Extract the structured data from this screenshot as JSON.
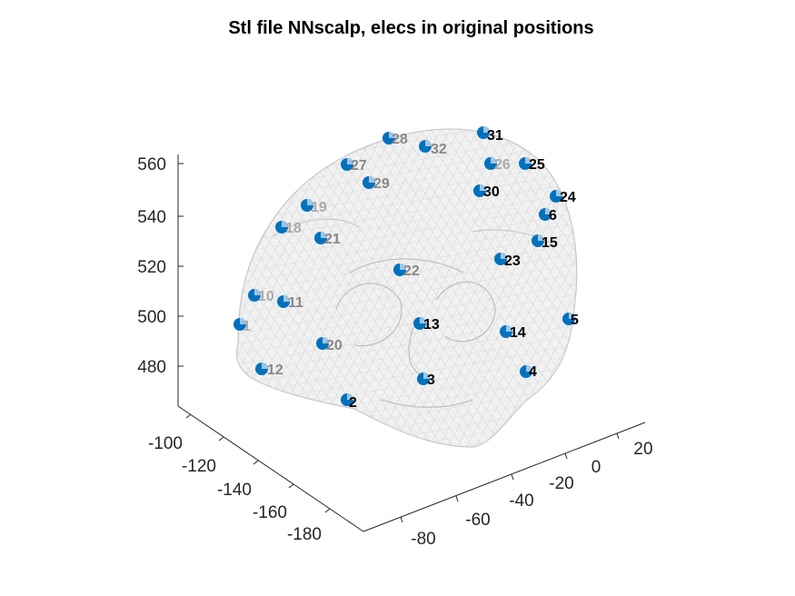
{
  "chart_data": {
    "type": "scatter",
    "title": "Stl file NNscalp, elecs in original positions",
    "xlabel": "",
    "ylabel": "",
    "zlabel": "",
    "grid": false,
    "surface": "head mesh (light gray wireframe)",
    "marker_color": "#0072BD",
    "surface_color": "#C8C8C8",
    "axes": {
      "x": {
        "ticks": [
          "-80",
          "-60",
          "-40",
          "-20",
          "0",
          "20"
        ]
      },
      "y": {
        "ticks": [
          "-100",
          "-120",
          "-140",
          "-160",
          "-180"
        ]
      },
      "z": {
        "ticks": [
          "480",
          "500",
          "520",
          "540",
          "560"
        ]
      }
    },
    "electrode_labels": [
      "2",
      "3",
      "4",
      "5",
      "13",
      "14",
      "15",
      "23",
      "24",
      "25",
      "30",
      "31",
      "32",
      "22",
      "21",
      "29",
      "28",
      "27",
      "11",
      "10",
      "12",
      "1",
      "20",
      "19",
      "18",
      "26",
      "6"
    ]
  }
}
